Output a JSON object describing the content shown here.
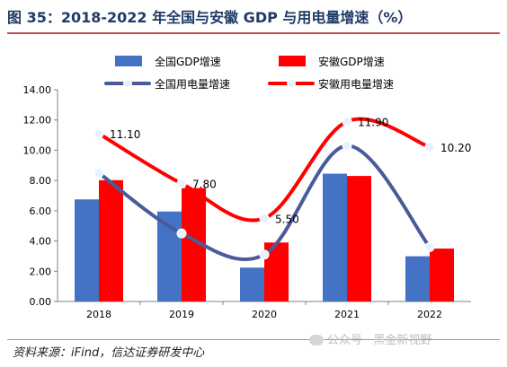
{
  "figure": {
    "title": "图 35：2018-2022 年全国与安徽 GDP 与用电量增速（%）",
    "source": "资料来源：iFind，信达证券研发中心",
    "watermark": "公众号 · 黑金新视野"
  },
  "colors": {
    "title": "#1f3b66",
    "rule": "#c0504d",
    "national_gdp": "#4472c4",
    "anhui_gdp": "#ff0000",
    "national_power": "#4a5a9a",
    "anhui_power": "#ff0000"
  },
  "chart_data": {
    "type": "bar",
    "categories": [
      "2018",
      "2019",
      "2020",
      "2021",
      "2022"
    ],
    "ylim": [
      0,
      14
    ],
    "yticks": [
      "0.00",
      "2.00",
      "4.00",
      "6.00",
      "8.00",
      "10.00",
      "12.00",
      "14.00"
    ],
    "grid": false,
    "legend_position": "top",
    "series": [
      {
        "name": "全国GDP增速",
        "type": "bar",
        "values": [
          6.75,
          5.95,
          2.24,
          8.45,
          2.99
        ]
      },
      {
        "name": "安徽GDP增速",
        "type": "bar",
        "values": [
          8.02,
          7.5,
          3.9,
          8.3,
          3.5
        ]
      },
      {
        "name": "全国用电量增速",
        "type": "line",
        "values": [
          8.5,
          4.5,
          3.1,
          10.3,
          3.6
        ]
      },
      {
        "name": "安徽用电量增速",
        "type": "line",
        "values": [
          11.1,
          7.8,
          5.5,
          11.9,
          10.2
        ]
      }
    ],
    "data_labels": [
      "11.10",
      "7.80",
      "5.50",
      "11.90",
      "10.20"
    ]
  }
}
